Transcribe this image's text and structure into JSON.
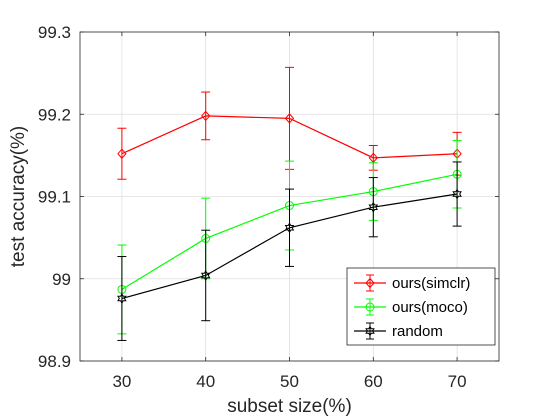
{
  "chart_data": {
    "type": "line",
    "xlabel": "subset size(%)",
    "ylabel": "test accuracy(%)",
    "x": [
      30,
      40,
      50,
      60,
      70
    ],
    "xlim": [
      25,
      75
    ],
    "ylim": [
      98.9,
      99.3
    ],
    "xticks": [
      30,
      40,
      50,
      60,
      70
    ],
    "yticks": [
      98.9,
      99,
      99.1,
      99.2,
      99.3
    ],
    "xtick_labels": [
      "30",
      "40",
      "50",
      "60",
      "70"
    ],
    "ytick_labels": [
      "98.9",
      "99",
      "99.1",
      "99.2",
      "99.3"
    ],
    "grid": true,
    "legend_position": "bottom-right",
    "series": [
      {
        "name": "ours(simclr)",
        "color": "#ff0000",
        "marker": "diamond",
        "values": [
          99.152,
          99.198,
          99.195,
          99.147,
          99.152
        ],
        "errors": [
          0.031,
          0.029,
          0.062,
          0.015,
          0.026
        ]
      },
      {
        "name": "ours(moco)",
        "color": "#00ff00",
        "marker": "circle",
        "values": [
          98.987,
          99.049,
          99.089,
          99.106,
          99.127
        ],
        "errors": [
          0.054,
          0.049,
          0.054,
          0.035,
          0.041
        ]
      },
      {
        "name": "random",
        "color": "#000000",
        "marker": "hexagram",
        "values": [
          98.976,
          99.004,
          99.062,
          99.087,
          99.103
        ],
        "errors": [
          0.051,
          0.055,
          0.047,
          0.036,
          0.039
        ]
      }
    ]
  }
}
